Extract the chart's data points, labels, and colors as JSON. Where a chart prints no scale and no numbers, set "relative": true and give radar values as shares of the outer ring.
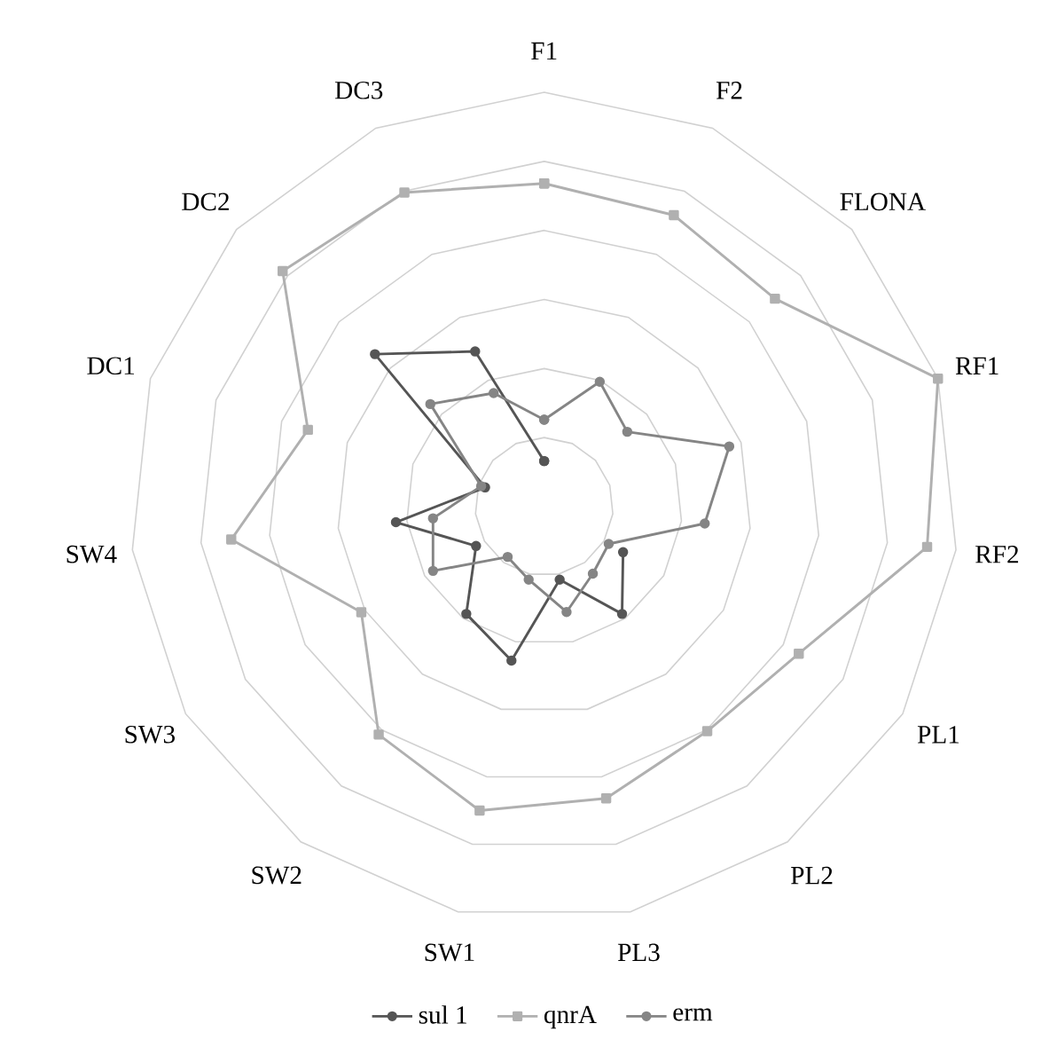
{
  "chart_data": {
    "type": "radar",
    "relative": true,
    "grid": true,
    "legend": "bottom",
    "categories": [
      "F1",
      "F2",
      "FLONA",
      "RF1",
      "RF2",
      "PL1",
      "PL2",
      "PL3",
      "SW1",
      "SW2",
      "SW3",
      "SW4",
      "DC1",
      "DC2",
      "DC3"
    ],
    "series": [
      {
        "name": "sul 1",
        "color": "#555555",
        "marker": "circle",
        "values": [
          0.11,
          null,
          null,
          null,
          null,
          0.22,
          0.32,
          0.18,
          0.38,
          0.32,
          0.19,
          0.36,
          0.15,
          0.55,
          0.41
        ]
      },
      {
        "name": "qnrA",
        "color": "#b0b0b0",
        "marker": "square",
        "values": [
          0.78,
          0.77,
          0.75,
          1.0,
          0.93,
          0.71,
          0.67,
          0.72,
          0.75,
          0.68,
          0.51,
          0.76,
          0.6,
          0.85,
          0.83
        ]
      },
      {
        "name": "erm",
        "color": "#858585",
        "marker": "circle",
        "values": [
          0.21,
          0.33,
          0.27,
          0.47,
          0.39,
          0.18,
          0.2,
          0.26,
          0.18,
          0.15,
          0.31,
          0.27,
          0.16,
          0.37,
          0.3
        ]
      }
    ]
  }
}
